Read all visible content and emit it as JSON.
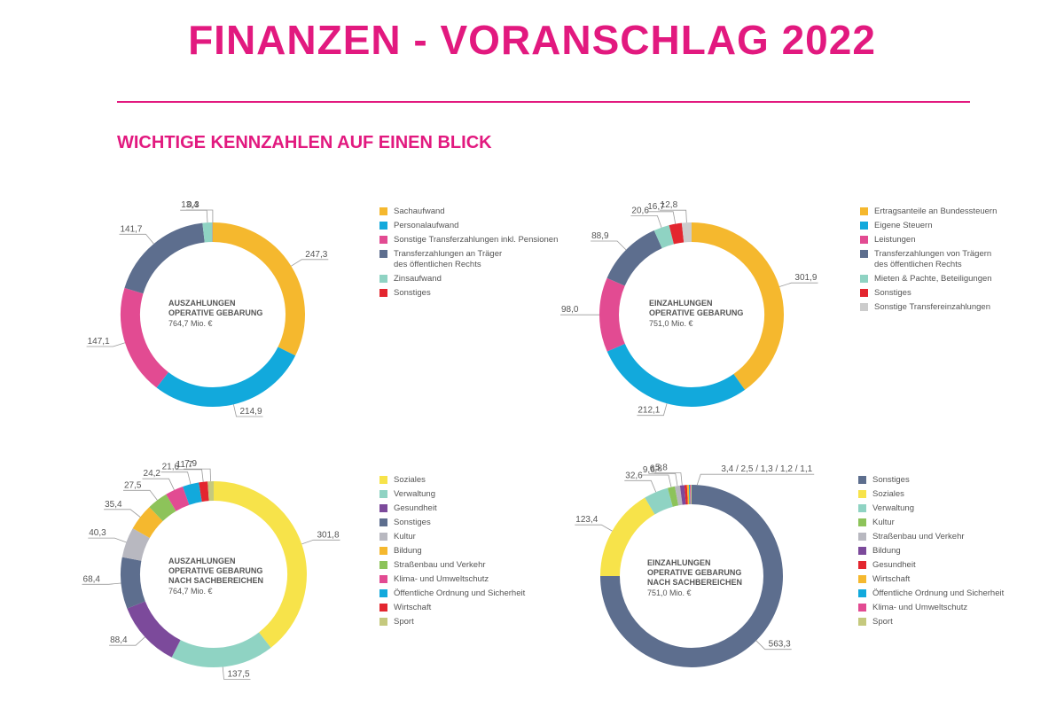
{
  "page": {
    "title": "FINANZEN - VORANSCHLAG 2022",
    "subtitle": "WICHTIGE KENNZAHLEN AUF EINEN BLICK"
  },
  "chart_data": [
    {
      "type": "donut",
      "title_lines": [
        "AUSZAHLUNGEN",
        "OPERATIVE GEBARUNG"
      ],
      "total": "764,7 Mio. €",
      "categories": [
        "Sachaufwand",
        "Personalaufwand",
        "Sonstige Transferzahlungen inkl. Pensionen",
        "Transferzahlungen an Träger\ndes öffentlichen Rechts",
        "Zinsaufwand",
        "Sonstiges"
      ],
      "values": [
        247.3,
        214.9,
        147.1,
        141.7,
        13.4,
        0.3
      ],
      "labels": [
        "247,3",
        "214,9",
        "147,1",
        "141,7",
        "13,4",
        "0,3"
      ],
      "colors": [
        "#f5b82e",
        "#12a9dc",
        "#e24b92",
        "#5d6e8e",
        "#8fd3c3",
        "#e3262f"
      ]
    },
    {
      "type": "donut",
      "title_lines": [
        "EINZAHLUNGEN",
        "OPERATIVE GEBARUNG"
      ],
      "total": "751,0 Mio. €",
      "categories": [
        "Ertragsanteile an Bundessteuern",
        "Eigene Steuern",
        "Leistungen",
        "Transferzahlungen von Trägern\ndes öffentlichen Rechts",
        "Mieten & Pachte, Beteiligungen",
        "Sonstiges",
        "Sonstige Transfereinzahlungen"
      ],
      "values": [
        301.9,
        212.1,
        98.0,
        88.9,
        20.6,
        16.7,
        12.8
      ],
      "labels": [
        "301,9",
        "212,1",
        "98,0",
        "88,9",
        "20,6",
        "16,7",
        "12,8"
      ],
      "colors": [
        "#f5b82e",
        "#12a9dc",
        "#e24b92",
        "#5d6e8e",
        "#8fd3c3",
        "#e3262f",
        "#cccccc"
      ]
    },
    {
      "type": "donut",
      "title_lines": [
        "AUSZAHLUNGEN",
        "OPERATIVE GEBARUNG",
        "NACH SACHBEREICHEN"
      ],
      "total": "764,7 Mio. €",
      "categories": [
        "Soziales",
        "Verwaltung",
        "Gesundheit",
        "Sonstiges",
        "Kultur",
        "Bildung",
        "Straßenbau und Verkehr",
        "Klima- und Umweltschutz",
        "Öffentliche Ordnung und Sicherheit",
        "Wirtschaft",
        "Sport"
      ],
      "values": [
        301.8,
        137.5,
        88.4,
        68.4,
        40.3,
        35.4,
        27.5,
        24.2,
        21.6,
        11.7,
        7.9
      ],
      "labels": [
        "301,8",
        "137,5",
        "88,4",
        "68,4",
        "40,3",
        "35,4",
        "27,5",
        "24,2",
        "21,6",
        "11,7",
        "7,9"
      ],
      "colors": [
        "#f7e34a",
        "#8fd3c3",
        "#7c4a9b",
        "#5d6e8e",
        "#b8b8c0",
        "#f5b82e",
        "#8dc35a",
        "#e24b92",
        "#12a9dc",
        "#e3262f",
        "#c5c97e"
      ]
    },
    {
      "type": "donut",
      "title_lines": [
        "EINZAHLUNGEN",
        "OPERATIVE GEBARUNG",
        "NACH SACHBEREICHEN"
      ],
      "total": "751,0 Mio. €",
      "categories": [
        "Sonstiges",
        "Soziales",
        "Verwaltung",
        "Kultur",
        "Straßenbau und Verkehr",
        "Bildung",
        "Gesundheit",
        "Wirtschaft",
        "Öffentliche Ordnung und Sicherheit",
        "Klima- und Umweltschutz",
        "Sport"
      ],
      "values": [
        563.3,
        123.4,
        32.6,
        9.6,
        6.8,
        5.8,
        3.4,
        2.5,
        1.3,
        1.2,
        1.1
      ],
      "labels": [
        "563,3",
        "123,4",
        "32,6",
        "9,6",
        "6,8",
        "5,8",
        "",
        "",
        "",
        "",
        ""
      ],
      "grouped_label": "3,4 / 2,5 / 1,3 / 1,2 / 1,1",
      "colors": [
        "#5d6e8e",
        "#f7e34a",
        "#8fd3c3",
        "#8dc35a",
        "#b8b8c0",
        "#7c4a9b",
        "#e3262f",
        "#f5b82e",
        "#12a9dc",
        "#e24b92",
        "#c5c97e"
      ]
    }
  ]
}
